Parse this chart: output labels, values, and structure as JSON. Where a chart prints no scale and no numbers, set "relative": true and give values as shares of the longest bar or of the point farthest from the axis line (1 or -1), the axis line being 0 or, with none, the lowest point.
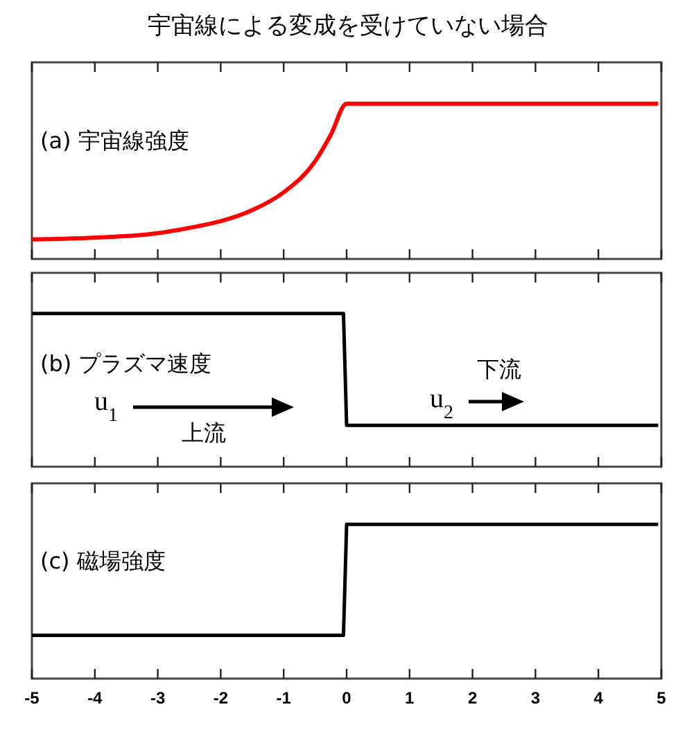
{
  "chart_data": [
    {
      "type": "line",
      "title": "宇宙線による変成を受けていない場合",
      "subtitle": "(a) 宇宙線強度",
      "relative": true,
      "xlim": [
        -5,
        5
      ],
      "xticks": [
        -5,
        -4,
        -3,
        -2,
        -1,
        0,
        1,
        2,
        3,
        4,
        5
      ],
      "tick_labels": false,
      "grid": false,
      "marker": "none",
      "line_style": "solid",
      "series": [
        {
          "color": "#ff0000",
          "x": [
            -5,
            -4,
            -3,
            -2.5,
            -2,
            -1.5,
            -1,
            -0.5,
            -0.25,
            0,
            4.95
          ],
          "values": [
            0.126,
            0.137,
            0.166,
            0.2,
            0.243,
            0.314,
            0.429,
            0.629,
            0.8,
            1,
            1
          ]
        }
      ]
    },
    {
      "type": "line",
      "subtitle": "(b) プラズマ速度",
      "relative": true,
      "xlim": [
        -5,
        5
      ],
      "xticks": [
        -5,
        -4,
        -3,
        -2,
        -1,
        0,
        1,
        2,
        3,
        4,
        5
      ],
      "tick_labels": false,
      "grid": false,
      "marker": "none",
      "line_style": "solid",
      "annotations": [
        "u$_{1}$",
        "上流",
        "u$_{2}$",
        "下流"
      ],
      "series": [
        {
          "color": "#000000",
          "x": [
            -5,
            -0.05,
            0,
            4.95
          ],
          "values": [
            1,
            1,
            0.27,
            0.27
          ]
        }
      ]
    },
    {
      "type": "line",
      "subtitle": "(c) 磁場強度",
      "relative": true,
      "xlim": [
        -5,
        5
      ],
      "xticks": [
        -5,
        -4,
        -3,
        -2,
        -1,
        0,
        1,
        2,
        3,
        4,
        5
      ],
      "tick_labels": "x",
      "grid": false,
      "marker": "none",
      "line_style": "solid",
      "series": [
        {
          "color": "#000000",
          "x": [
            -5,
            -0.05,
            0,
            4.95
          ],
          "values": [
            0.28,
            0.28,
            1,
            1
          ]
        }
      ]
    }
  ]
}
